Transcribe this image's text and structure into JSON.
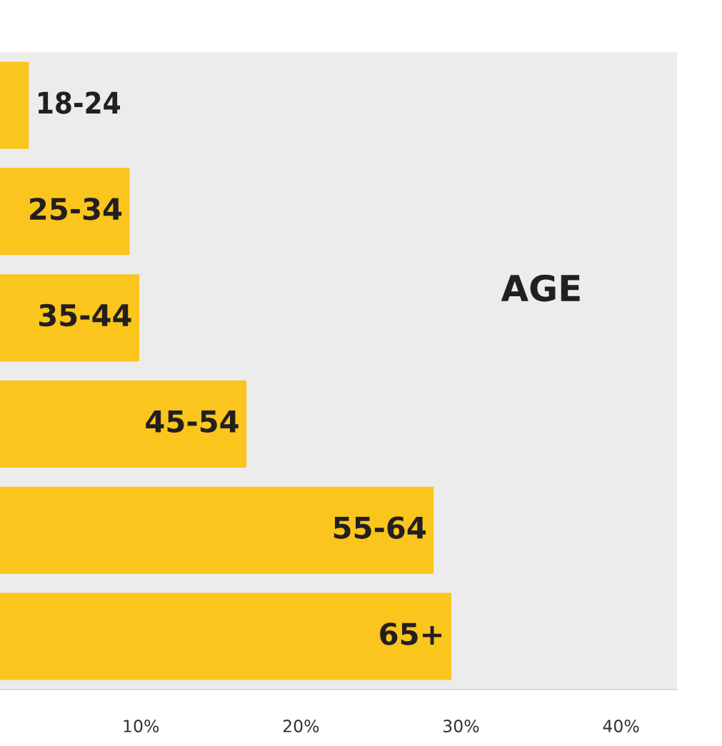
{
  "chart_data": {
    "type": "bar",
    "orientation": "horizontal",
    "categories": [
      "18-24",
      "25-34",
      "35-44",
      "45-54",
      "55-64",
      "65+"
    ],
    "values": [
      3.0,
      9.3,
      9.9,
      16.6,
      28.3,
      29.4
    ],
    "color": "#fac51c",
    "xlim": [
      1.2,
      43.5
    ],
    "xticks": [
      {
        "value": 10,
        "label": "10%"
      },
      {
        "value": 20,
        "label": "20%"
      },
      {
        "value": 30,
        "label": "30%"
      },
      {
        "value": 40,
        "label": "40%"
      }
    ],
    "tick_labels": "x",
    "grid": false,
    "legend": false,
    "annotations": [
      "AGE"
    ]
  }
}
